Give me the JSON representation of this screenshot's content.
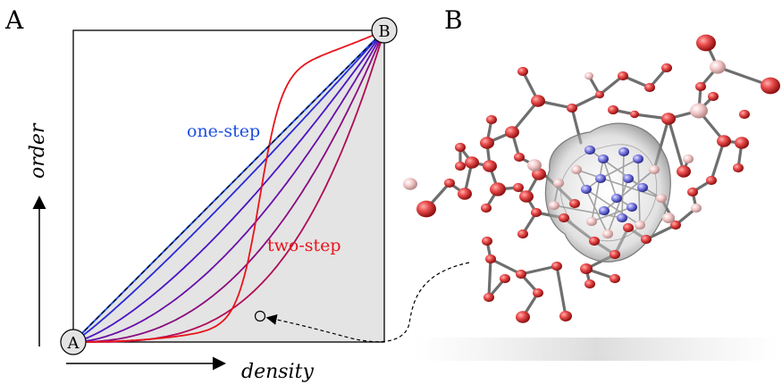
{
  "panels": {
    "a": {
      "label": "A",
      "xlabel": "density",
      "ylabel": "order",
      "start_node": "A",
      "end_node": "B",
      "one_step_label": "one-step",
      "two_step_label": "two-step",
      "colors": {
        "one_step": "#1c4fe0",
        "two_step": "#e8141c",
        "region": "#e4e4e4"
      },
      "curve_steepness": [
        0.9,
        0.72,
        0.56,
        0.42,
        0.3,
        0.12
      ],
      "curve_colors": [
        "#2a2ad6",
        "#4a14c4",
        "#6a10a8",
        "#8a0c7e",
        "#b00c56",
        "#e8141c"
      ]
    },
    "b": {
      "label": "B",
      "description_icon": "molecular-cluster-icon"
    }
  }
}
